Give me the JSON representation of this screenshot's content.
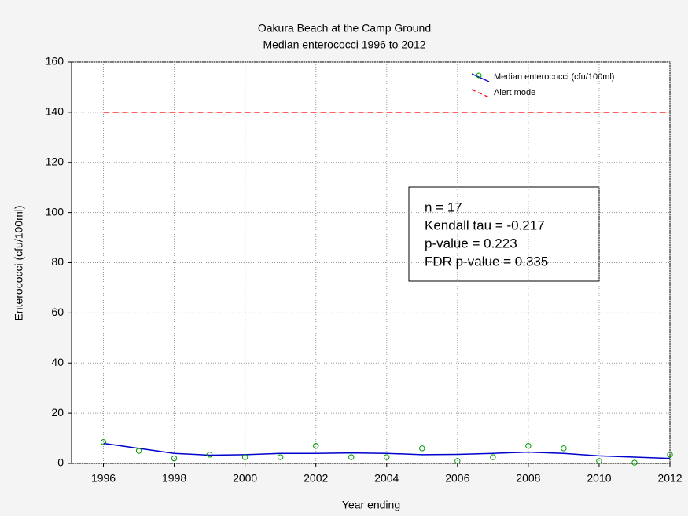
{
  "chart_data": {
    "type": "line",
    "title": "Oakura Beach at the Camp Ground",
    "subtitle": "Median enterococci 1996 to 2012",
    "x_label": "Year ending",
    "y_label": "Enterococci (cfu/100ml)",
    "x": [
      1996,
      1997,
      1998,
      1999,
      2000,
      2001,
      2002,
      2003,
      2004,
      2005,
      2006,
      2007,
      2008,
      2009,
      2010,
      2011,
      2012
    ],
    "series": [
      {
        "name": "Median enterococci (cfu/100ml)",
        "color": "#0000cc",
        "marker_color": "#009900",
        "values": [
          8.5,
          5,
          2,
          3.5,
          2.5,
          2.5,
          7,
          2.5,
          2.5,
          6,
          1,
          2.5,
          7,
          6,
          1,
          0.3,
          3.5
        ],
        "smooth_values": [
          8,
          6,
          4,
          3.3,
          3.5,
          4,
          4,
          4.2,
          4,
          3.5,
          3.6,
          4,
          4.5,
          4,
          3,
          2.5,
          2
        ]
      },
      {
        "name": "Alert mode",
        "color": "#ff0000",
        "dashed": true,
        "x": [
          1996,
          2012
        ],
        "values": [
          140,
          140
        ]
      }
    ],
    "annotation": [
      "n = 17",
      "Kendall tau = -0.217",
      "p-value = 0.223",
      "FDR p-value = 0.335"
    ],
    "xlim": [
      1995.1,
      2012
    ],
    "xticks": [
      1996,
      1998,
      2000,
      2002,
      2004,
      2006,
      2008,
      2010,
      2012
    ],
    "ylim": [
      0,
      160
    ],
    "yticks": [
      0,
      20,
      40,
      60,
      80,
      100,
      120,
      140,
      160
    ],
    "grid": true,
    "legend": "top-right"
  }
}
